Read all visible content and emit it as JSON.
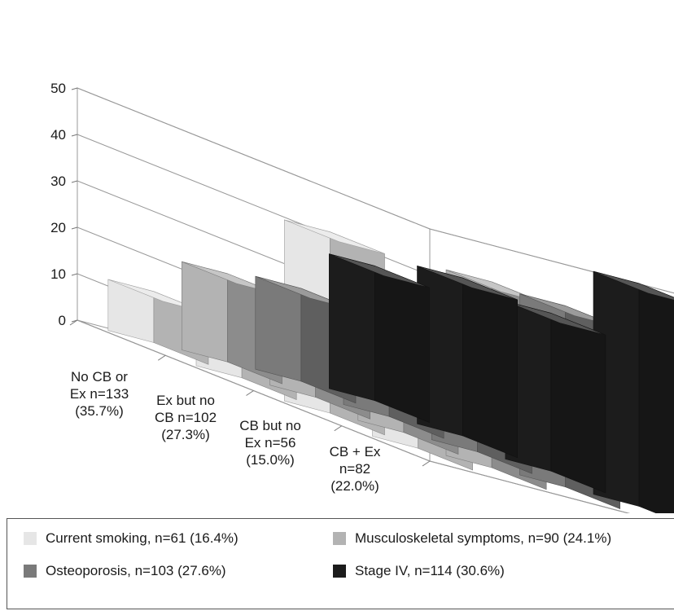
{
  "chart_data": {
    "type": "bar",
    "subtype": "3d-column",
    "title": "",
    "ylim": [
      0,
      50
    ],
    "yticks": [
      "0",
      "10",
      "20",
      "30",
      "40",
      "50"
    ],
    "grid": true,
    "categories": [
      [
        "No CB or",
        "Ex n=133",
        "(35.7%)"
      ],
      [
        "Ex but no",
        "CB n=102",
        "(27.3%)"
      ],
      [
        "CB but no",
        "Ex n=56",
        "(15.0%)"
      ],
      [
        "CB + Ex",
        "n=82",
        "(22.0%)"
      ]
    ],
    "series": [
      {
        "name": "Current smoking, n=61 (16.4%)",
        "values": [
          11,
          6,
          39,
          24
        ],
        "color": "#e6e6e6"
      },
      {
        "name": "Musculoskeletal symptoms, n=90 (24.1%)",
        "values": [
          19,
          22,
          24,
          40
        ],
        "color": "#b3b3b3"
      },
      {
        "name": "Osteoporosis, n=103 (27.6%)",
        "values": [
          20,
          30,
          33,
          39
        ],
        "color": "#7a7a7a"
      },
      {
        "name": "Stage IV, n=114 (30.6%)",
        "values": [
          29,
          34,
          34,
          48
        ],
        "color": "#1c1c1c"
      }
    ],
    "legend_position": "bottom"
  }
}
